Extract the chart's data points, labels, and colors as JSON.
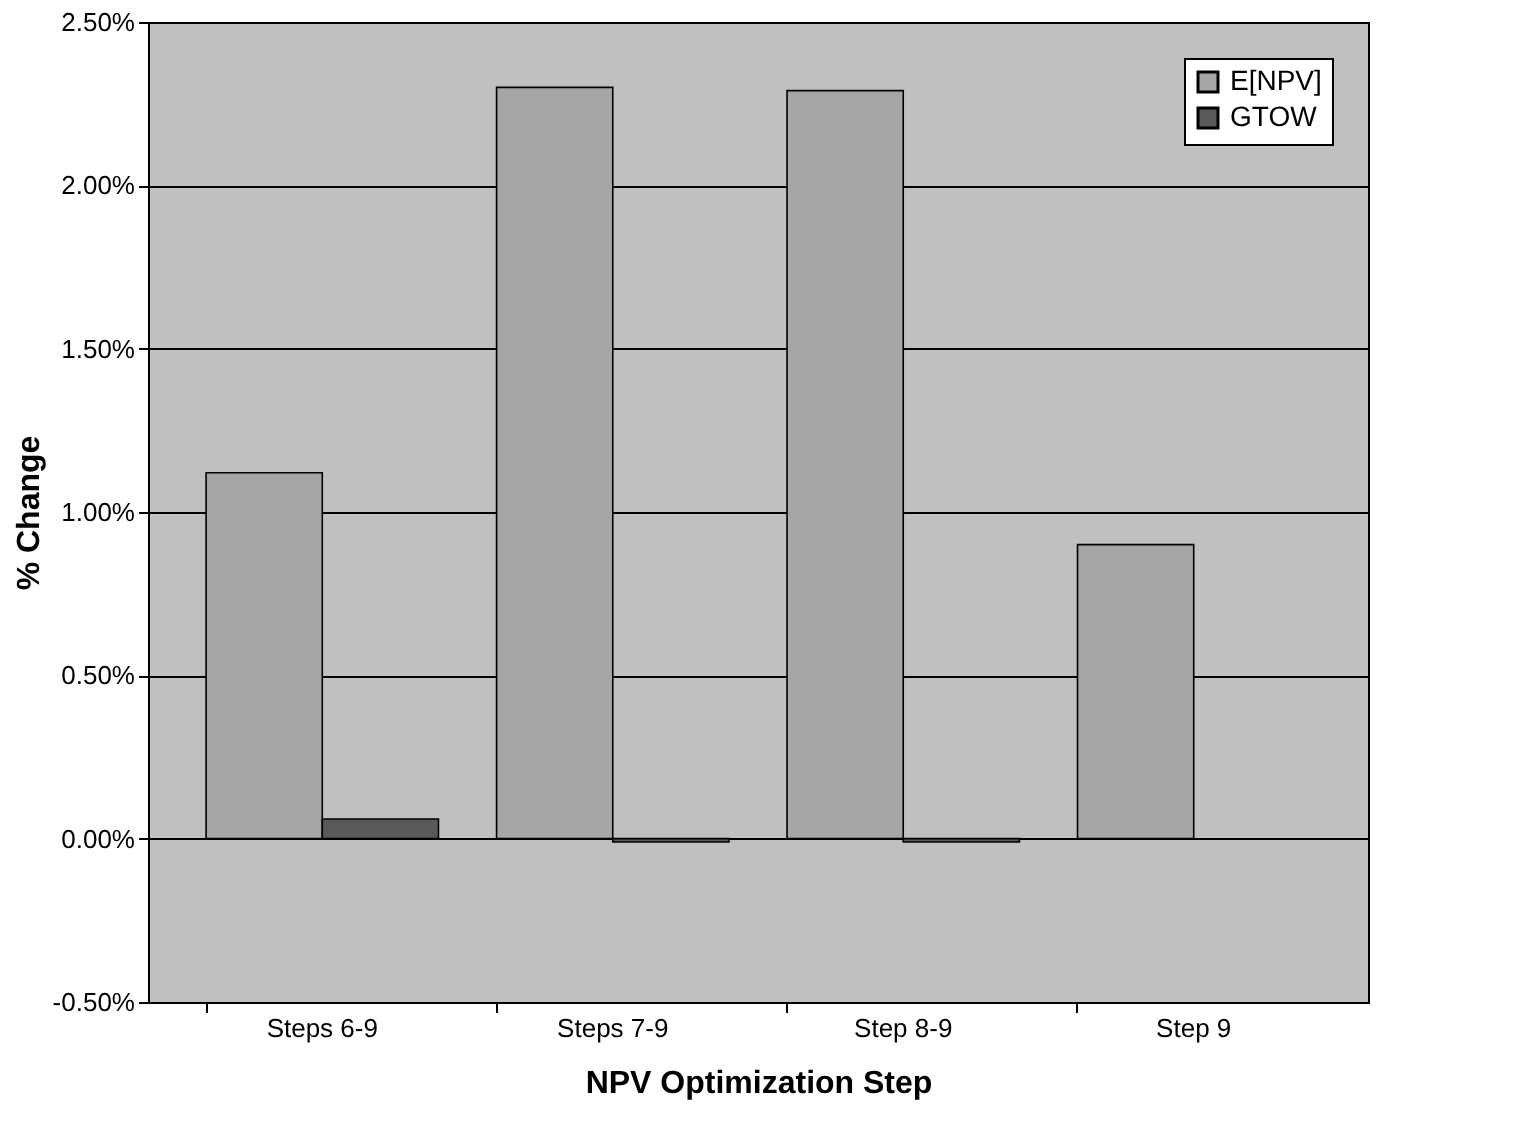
{
  "chart_data": {
    "type": "bar",
    "xlabel": "NPV Optimization Step",
    "ylabel": "% Change",
    "categories": [
      "Steps 6-9",
      "Steps 7-9",
      "Step 8-9",
      "Step 9"
    ],
    "series": [
      {
        "name": "E[NPV]",
        "color": "#a6a6a6",
        "values": [
          1.12,
          2.3,
          2.29,
          0.9
        ]
      },
      {
        "name": "GTOW",
        "color": "#595959",
        "values": [
          0.06,
          -0.01,
          -0.01,
          0.0
        ]
      }
    ],
    "ylim": [
      -0.5,
      2.5
    ],
    "yticks": [
      {
        "value": -0.5,
        "label": "-0.50%"
      },
      {
        "value": 0,
        "label": "0.00%"
      },
      {
        "value": 0.5,
        "label": "0.50%"
      },
      {
        "value": 1.0,
        "label": "1.00%"
      },
      {
        "value": 1.5,
        "label": "1.50%"
      },
      {
        "value": 2.0,
        "label": "2.00%"
      },
      {
        "value": 2.5,
        "label": "2.50%"
      }
    ],
    "grid": "y",
    "legend": "top right"
  }
}
